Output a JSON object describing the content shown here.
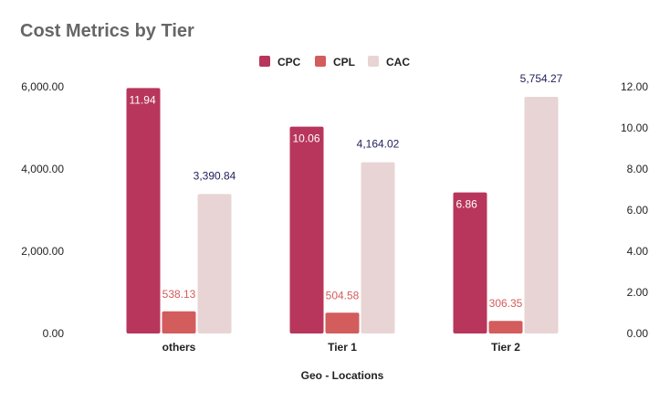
{
  "chart_data": {
    "type": "bar",
    "title": "Cost Metrics by Tier",
    "xlabel": "Geo - Locations",
    "categories": [
      "others",
      "Tier 1",
      "Tier 2"
    ],
    "legend_position": "top",
    "grid": false,
    "left_axis": {
      "range": [
        0,
        6000
      ],
      "ticks": [
        "0.00",
        "2,000.00",
        "4,000.00",
        "6,000.00"
      ],
      "tick_values": [
        0,
        2000,
        4000,
        6000
      ]
    },
    "right_axis": {
      "range": [
        0,
        12
      ],
      "ticks": [
        "0.00",
        "2.00",
        "4.00",
        "6.00",
        "8.00",
        "10.00",
        "12.00"
      ],
      "tick_values": [
        0,
        2,
        4,
        6,
        8,
        10,
        12
      ]
    },
    "series": [
      {
        "name": "CPC",
        "axis": "right",
        "color": "#b8365b",
        "label_color": "#ffffff",
        "label_position": "inside-top",
        "values": [
          11.94,
          10.06,
          6.86
        ],
        "labels": [
          "11.94",
          "10.06",
          "6.86"
        ]
      },
      {
        "name": "CPL",
        "axis": "left",
        "color": "#d35c5c",
        "label_color": "#d35c5c",
        "label_position": "above",
        "values": [
          538.13,
          504.58,
          306.35
        ],
        "labels": [
          "538.13",
          "504.58",
          "306.35"
        ]
      },
      {
        "name": "CAC",
        "axis": "left",
        "color": "#e8d4d4",
        "label_color": "#1f1f5a",
        "label_position": "above",
        "values": [
          3390.84,
          4164.02,
          5754.27
        ],
        "labels": [
          "3,390.84",
          "4,164.02",
          "5,754.27"
        ]
      }
    ]
  }
}
